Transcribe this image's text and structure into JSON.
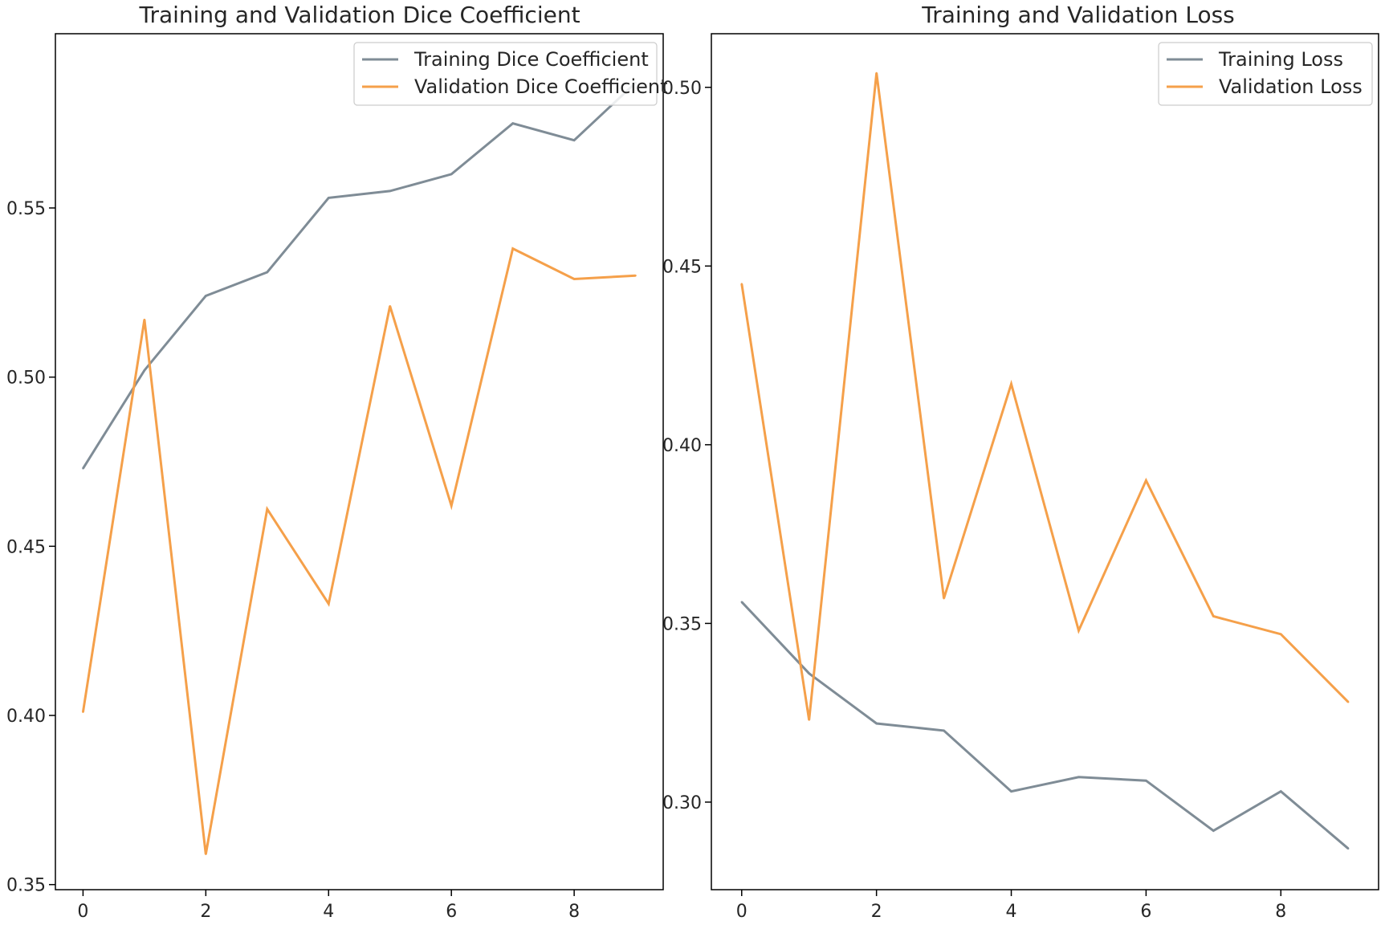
{
  "colors": {
    "training": "#7f8c96",
    "validation": "#f5a04a",
    "axes": "#000000",
    "legend_border": "#cccccc"
  },
  "chart_data": [
    {
      "type": "line",
      "title": "Training and Validation Dice Coefficient",
      "xlabel": "",
      "ylabel": "",
      "xlim": [
        -0.45,
        9.45
      ],
      "ylim": [
        0.3485,
        0.6015
      ],
      "xticks": [
        0,
        2,
        4,
        6,
        8
      ],
      "xtick_labels": [
        "0",
        "2",
        "4",
        "6",
        "8"
      ],
      "yticks": [
        0.35,
        0.4,
        0.45,
        0.5,
        0.55
      ],
      "ytick_labels": [
        "0.35",
        "0.40",
        "0.45",
        "0.50",
        "0.55"
      ],
      "grid": false,
      "legend_position": "top-right",
      "x": [
        0,
        1,
        2,
        3,
        4,
        5,
        6,
        7,
        8,
        9
      ],
      "series": [
        {
          "name": "Training Dice Coefficient",
          "color_key": "training",
          "values": [
            0.473,
            0.502,
            0.524,
            0.531,
            0.553,
            0.555,
            0.56,
            0.575,
            0.57,
            0.587
          ]
        },
        {
          "name": "Validation Dice Coefficient",
          "color_key": "validation",
          "values": [
            0.401,
            0.517,
            0.359,
            0.461,
            0.433,
            0.521,
            0.462,
            0.538,
            0.529,
            0.53
          ]
        }
      ]
    },
    {
      "type": "line",
      "title": "Training and Validation Loss",
      "xlabel": "",
      "ylabel": "",
      "xlim": [
        -0.45,
        9.45
      ],
      "ylim": [
        0.2755,
        0.515
      ],
      "xticks": [
        0,
        2,
        4,
        6,
        8
      ],
      "xtick_labels": [
        "0",
        "2",
        "4",
        "6",
        "8"
      ],
      "yticks": [
        0.3,
        0.35,
        0.4,
        0.45,
        0.5
      ],
      "ytick_labels": [
        "0.30",
        "0.35",
        "0.40",
        "0.45",
        "0.50"
      ],
      "grid": false,
      "legend_position": "top-right",
      "x": [
        0,
        1,
        2,
        3,
        4,
        5,
        6,
        7,
        8,
        9
      ],
      "series": [
        {
          "name": "Training Loss",
          "color_key": "training",
          "values": [
            0.356,
            0.336,
            0.322,
            0.32,
            0.303,
            0.307,
            0.306,
            0.292,
            0.303,
            0.287
          ]
        },
        {
          "name": "Validation Loss",
          "color_key": "validation",
          "values": [
            0.445,
            0.323,
            0.504,
            0.357,
            0.417,
            0.348,
            0.39,
            0.352,
            0.347,
            0.328
          ]
        }
      ]
    }
  ]
}
